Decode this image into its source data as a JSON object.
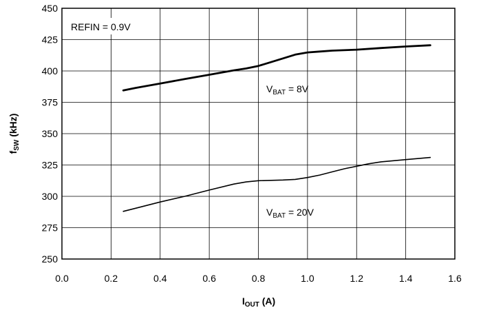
{
  "chart_data": {
    "type": "line",
    "xlabel": {
      "main": "I",
      "sub": "OUT",
      "unit": " (A)"
    },
    "ylabel": {
      "main": "f",
      "sub": "SW",
      "unit": " (kHz)"
    },
    "xlim": [
      0,
      1.6
    ],
    "ylim": [
      250,
      450
    ],
    "x_ticks": [
      "0.0",
      "0.2",
      "0.4",
      "0.6",
      "0.8",
      "1.0",
      "1.2",
      "1.4",
      "1.6"
    ],
    "y_ticks": [
      "250",
      "275",
      "300",
      "325",
      "350",
      "375",
      "400",
      "425",
      "450"
    ],
    "grid": true,
    "annotations": {
      "refin": "REFIN = 0.9V",
      "series_8v": {
        "main": "V",
        "sub": "BAT",
        "rest": " = 8V"
      },
      "series_20v": {
        "main": "V",
        "sub": "BAT",
        "rest": " = 20V"
      }
    },
    "series": [
      {
        "x": [
          0.25,
          0.3,
          0.4,
          0.5,
          0.6,
          0.7,
          0.75,
          0.8,
          0.85,
          0.9,
          0.95,
          1.0,
          1.05,
          1.1,
          1.2,
          1.3,
          1.4,
          1.5
        ],
        "y": [
          384.5,
          386.5,
          390,
          393.5,
          397,
          400.5,
          402,
          404,
          407,
          410,
          413,
          414.8,
          415.5,
          416.2,
          417,
          418.3,
          419.5,
          420.5
        ]
      },
      {
        "x": [
          0.25,
          0.3,
          0.4,
          0.5,
          0.6,
          0.7,
          0.75,
          0.8,
          0.9,
          0.95,
          1.0,
          1.05,
          1.1,
          1.15,
          1.2,
          1.25,
          1.3,
          1.4,
          1.5
        ],
        "y": [
          288,
          290.5,
          295.5,
          300,
          305,
          309.8,
          311.5,
          312.5,
          313,
          313.5,
          315,
          317,
          319.5,
          322,
          324,
          326,
          327.5,
          329.3,
          331
        ]
      }
    ]
  }
}
